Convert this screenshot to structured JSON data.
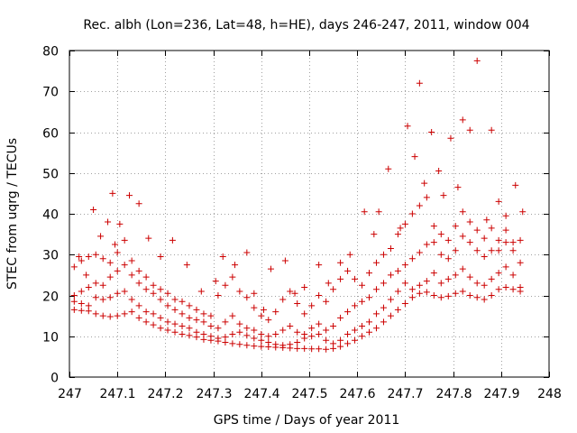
{
  "chart_data": {
    "type": "scatter",
    "title": "Rec. albh (Lon=236, Lat=48, h=HE), days 246-247, 2011, window 004",
    "xlabel": "GPS time / Days of year 2011",
    "ylabel": "STEC from uqrg / TECUs",
    "xlim": [
      247,
      248
    ],
    "ylim": [
      0,
      80
    ],
    "xticks": [
      247,
      247.1,
      247.2,
      247.3,
      247.4,
      247.5,
      247.6,
      247.7,
      247.8,
      247.9,
      248
    ],
    "xtick_labels": [
      "247",
      "247.1",
      "247.2",
      "247.3",
      "247.4",
      "247.5",
      "247.6",
      "247.7",
      "247.8",
      "247.9",
      "248"
    ],
    "yticks": [
      0,
      10,
      20,
      30,
      40,
      50,
      60,
      70,
      80
    ],
    "ytick_labels": [
      "0",
      "10",
      "20",
      "30",
      "40",
      "50",
      "60",
      "70",
      "80"
    ],
    "grid": true,
    "marker": "+",
    "color": "#cc0000",
    "series": [
      {
        "name": "STEC",
        "points": [
          [
            247.01,
            16.5
          ],
          [
            247.025,
            16.3
          ],
          [
            247.04,
            16.2
          ],
          [
            247.055,
            15.5
          ],
          [
            247.07,
            15.0
          ],
          [
            247.085,
            14.8
          ],
          [
            247.1,
            15.0
          ],
          [
            247.115,
            15.5
          ],
          [
            247.13,
            16.0
          ],
          [
            247.145,
            14.5
          ],
          [
            247.16,
            13.5
          ],
          [
            247.175,
            12.8
          ],
          [
            247.19,
            12.0
          ],
          [
            247.205,
            11.5
          ],
          [
            247.22,
            11.0
          ],
          [
            247.235,
            10.5
          ],
          [
            247.25,
            10.2
          ],
          [
            247.265,
            9.8
          ],
          [
            247.28,
            9.2
          ],
          [
            247.295,
            9.0
          ],
          [
            247.31,
            8.8
          ],
          [
            247.325,
            8.5
          ],
          [
            247.34,
            8.2
          ],
          [
            247.355,
            8.0
          ],
          [
            247.37,
            7.8
          ],
          [
            247.385,
            7.6
          ],
          [
            247.4,
            7.5
          ],
          [
            247.415,
            7.4
          ],
          [
            247.43,
            7.3
          ],
          [
            247.445,
            7.2
          ],
          [
            247.46,
            7.1
          ],
          [
            247.475,
            7.0
          ],
          [
            247.49,
            7.0
          ],
          [
            247.505,
            6.9
          ],
          [
            247.52,
            6.9
          ],
          [
            247.535,
            6.8
          ],
          [
            247.55,
            7.0
          ],
          [
            247.565,
            7.5
          ],
          [
            247.58,
            8.2
          ],
          [
            247.595,
            9.0
          ],
          [
            247.61,
            10.0
          ],
          [
            247.625,
            11.0
          ],
          [
            247.64,
            12.0
          ],
          [
            247.655,
            13.5
          ],
          [
            247.67,
            15.0
          ],
          [
            247.685,
            16.5
          ],
          [
            247.7,
            18.0
          ],
          [
            247.715,
            19.5
          ],
          [
            247.73,
            20.5
          ],
          [
            247.745,
            20.8
          ],
          [
            247.76,
            20.0
          ],
          [
            247.775,
            19.5
          ],
          [
            247.79,
            19.8
          ],
          [
            247.805,
            20.5
          ],
          [
            247.82,
            21.0
          ],
          [
            247.835,
            20.0
          ],
          [
            247.85,
            19.5
          ],
          [
            247.865,
            19.0
          ],
          [
            247.88,
            20.0
          ],
          [
            247.895,
            21.5
          ],
          [
            247.91,
            22.0
          ],
          [
            247.925,
            21.5
          ],
          [
            247.94,
            21.0
          ],
          [
            247.01,
            18.5
          ],
          [
            247.025,
            18.0
          ],
          [
            247.04,
            17.5
          ],
          [
            247.055,
            19.5
          ],
          [
            247.07,
            19.0
          ],
          [
            247.085,
            19.5
          ],
          [
            247.1,
            20.5
          ],
          [
            247.115,
            21.0
          ],
          [
            247.13,
            19.0
          ],
          [
            247.145,
            17.5
          ],
          [
            247.16,
            16.0
          ],
          [
            247.175,
            15.5
          ],
          [
            247.19,
            14.5
          ],
          [
            247.205,
            13.5
          ],
          [
            247.22,
            13.0
          ],
          [
            247.235,
            12.5
          ],
          [
            247.25,
            12.0
          ],
          [
            247.265,
            11.0
          ],
          [
            247.28,
            10.5
          ],
          [
            247.295,
            10.0
          ],
          [
            247.31,
            9.5
          ],
          [
            247.325,
            9.8
          ],
          [
            247.34,
            10.5
          ],
          [
            247.355,
            11.0
          ],
          [
            247.37,
            10.2
          ],
          [
            247.385,
            9.5
          ],
          [
            247.4,
            9.0
          ],
          [
            247.415,
            8.5
          ],
          [
            247.43,
            8.0
          ],
          [
            247.445,
            7.8
          ],
          [
            247.46,
            8.0
          ],
          [
            247.475,
            8.5
          ],
          [
            247.49,
            9.5
          ],
          [
            247.505,
            10.0
          ],
          [
            247.52,
            10.5
          ],
          [
            247.535,
            9.0
          ],
          [
            247.55,
            8.2
          ],
          [
            247.565,
            9.0
          ],
          [
            247.58,
            10.5
          ],
          [
            247.595,
            11.5
          ],
          [
            247.61,
            12.5
          ],
          [
            247.625,
            13.5
          ],
          [
            247.64,
            15.5
          ],
          [
            247.655,
            17.0
          ],
          [
            247.67,
            19.0
          ],
          [
            247.685,
            21.0
          ],
          [
            247.7,
            23.0
          ],
          [
            247.715,
            21.5
          ],
          [
            247.73,
            22.5
          ],
          [
            247.745,
            23.5
          ],
          [
            247.76,
            25.5
          ],
          [
            247.775,
            23.0
          ],
          [
            247.79,
            24.0
          ],
          [
            247.805,
            25.0
          ],
          [
            247.82,
            26.5
          ],
          [
            247.835,
            24.5
          ],
          [
            247.85,
            23.0
          ],
          [
            247.865,
            22.5
          ],
          [
            247.88,
            24.0
          ],
          [
            247.895,
            25.5
          ],
          [
            247.91,
            27.0
          ],
          [
            247.925,
            25.0
          ],
          [
            247.94,
            22.0
          ],
          [
            247.01,
            20.0
          ],
          [
            247.025,
            21.0
          ],
          [
            247.04,
            22.0
          ],
          [
            247.055,
            23.0
          ],
          [
            247.07,
            22.5
          ],
          [
            247.085,
            24.5
          ],
          [
            247.1,
            26.0
          ],
          [
            247.115,
            27.5
          ],
          [
            247.13,
            25.0
          ],
          [
            247.145,
            23.0
          ],
          [
            247.16,
            21.5
          ],
          [
            247.175,
            20.5
          ],
          [
            247.19,
            19.0
          ],
          [
            247.205,
            17.5
          ],
          [
            247.22,
            16.5
          ],
          [
            247.235,
            15.5
          ],
          [
            247.25,
            14.5
          ],
          [
            247.265,
            14.0
          ],
          [
            247.28,
            13.5
          ],
          [
            247.295,
            12.5
          ],
          [
            247.31,
            12.0
          ],
          [
            247.325,
            13.5
          ],
          [
            247.34,
            15.0
          ],
          [
            247.355,
            13.0
          ],
          [
            247.37,
            12.0
          ],
          [
            247.385,
            11.5
          ],
          [
            247.4,
            10.5
          ],
          [
            247.415,
            10.0
          ],
          [
            247.43,
            10.5
          ],
          [
            247.445,
            11.5
          ],
          [
            247.46,
            12.5
          ],
          [
            247.475,
            11.0
          ],
          [
            247.49,
            10.5
          ],
          [
            247.505,
            12.0
          ],
          [
            247.52,
            13.0
          ],
          [
            247.535,
            11.5
          ],
          [
            247.55,
            12.5
          ],
          [
            247.565,
            14.5
          ],
          [
            247.58,
            16.0
          ],
          [
            247.595,
            17.5
          ],
          [
            247.61,
            18.5
          ],
          [
            247.625,
            19.5
          ],
          [
            247.64,
            21.5
          ],
          [
            247.655,
            23.0
          ],
          [
            247.67,
            25.0
          ],
          [
            247.685,
            26.0
          ],
          [
            247.7,
            27.5
          ],
          [
            247.715,
            29.0
          ],
          [
            247.73,
            30.5
          ],
          [
            247.745,
            32.5
          ],
          [
            247.76,
            33.0
          ],
          [
            247.775,
            30.0
          ],
          [
            247.79,
            29.0
          ],
          [
            247.805,
            31.0
          ],
          [
            247.82,
            34.5
          ],
          [
            247.835,
            33.0
          ],
          [
            247.85,
            31.0
          ],
          [
            247.865,
            29.5
          ],
          [
            247.88,
            31.0
          ],
          [
            247.895,
            33.5
          ],
          [
            247.91,
            36.0
          ],
          [
            247.925,
            33.0
          ],
          [
            247.94,
            28.0
          ],
          [
            247.01,
            27.0
          ],
          [
            247.025,
            28.5
          ],
          [
            247.04,
            29.5
          ],
          [
            247.055,
            30.0
          ],
          [
            247.07,
            29.0
          ],
          [
            247.085,
            28.0
          ],
          [
            247.1,
            30.5
          ],
          [
            247.115,
            33.5
          ],
          [
            247.13,
            28.5
          ],
          [
            247.145,
            26.0
          ],
          [
            247.16,
            24.5
          ],
          [
            247.175,
            22.5
          ],
          [
            247.19,
            21.5
          ],
          [
            247.205,
            20.5
          ],
          [
            247.22,
            19.0
          ],
          [
            247.235,
            18.5
          ],
          [
            247.25,
            17.5
          ],
          [
            247.265,
            16.5
          ],
          [
            247.28,
            15.5
          ],
          [
            247.295,
            15.0
          ],
          [
            247.31,
            20.0
          ],
          [
            247.325,
            22.5
          ],
          [
            247.34,
            24.5
          ],
          [
            247.355,
            21.0
          ],
          [
            247.37,
            19.5
          ],
          [
            247.385,
            17.0
          ],
          [
            247.4,
            15.0
          ],
          [
            247.415,
            14.0
          ],
          [
            247.43,
            16.0
          ],
          [
            247.445,
            19.0
          ],
          [
            247.46,
            21.0
          ],
          [
            247.475,
            18.0
          ],
          [
            247.49,
            15.5
          ],
          [
            247.505,
            17.5
          ],
          [
            247.52,
            20.0
          ],
          [
            247.535,
            18.5
          ],
          [
            247.55,
            21.5
          ],
          [
            247.565,
            24.0
          ],
          [
            247.58,
            26.0
          ],
          [
            247.595,
            24.0
          ],
          [
            247.61,
            22.5
          ],
          [
            247.625,
            25.5
          ],
          [
            247.64,
            28.0
          ],
          [
            247.655,
            30.0
          ],
          [
            247.67,
            31.5
          ],
          [
            247.685,
            35.0
          ],
          [
            247.7,
            37.5
          ],
          [
            247.715,
            40.0
          ],
          [
            247.73,
            42.0
          ],
          [
            247.745,
            44.0
          ],
          [
            247.76,
            37.0
          ],
          [
            247.775,
            35.0
          ],
          [
            247.79,
            33.5
          ],
          [
            247.805,
            37.0
          ],
          [
            247.82,
            40.5
          ],
          [
            247.835,
            38.0
          ],
          [
            247.85,
            36.0
          ],
          [
            247.865,
            34.0
          ],
          [
            247.88,
            36.5
          ],
          [
            247.895,
            31.0
          ],
          [
            247.91,
            33.0
          ],
          [
            247.925,
            31.0
          ],
          [
            247.94,
            33.5
          ],
          [
            247.02,
            29.5
          ],
          [
            247.035,
            25.0
          ],
          [
            247.05,
            41.0
          ],
          [
            247.065,
            34.5
          ],
          [
            247.08,
            38.0
          ],
          [
            247.09,
            45.0
          ],
          [
            247.095,
            32.5
          ],
          [
            247.105,
            37.5
          ],
          [
            247.125,
            44.5
          ],
          [
            247.145,
            42.5
          ],
          [
            247.165,
            34.0
          ],
          [
            247.19,
            29.5
          ],
          [
            247.215,
            33.5
          ],
          [
            247.245,
            27.5
          ],
          [
            247.275,
            21.0
          ],
          [
            247.305,
            23.5
          ],
          [
            247.32,
            29.5
          ],
          [
            247.345,
            27.5
          ],
          [
            247.37,
            30.5
          ],
          [
            247.385,
            20.5
          ],
          [
            247.405,
            16.5
          ],
          [
            247.42,
            26.5
          ],
          [
            247.45,
            28.5
          ],
          [
            247.47,
            20.5
          ],
          [
            247.49,
            22.0
          ],
          [
            247.52,
            27.5
          ],
          [
            247.54,
            23.0
          ],
          [
            247.565,
            28.0
          ],
          [
            247.585,
            30.0
          ],
          [
            247.615,
            40.5
          ],
          [
            247.635,
            35.0
          ],
          [
            247.645,
            40.5
          ],
          [
            247.665,
            51.0
          ],
          [
            247.69,
            36.5
          ],
          [
            247.705,
            61.5
          ],
          [
            247.72,
            54.0
          ],
          [
            247.73,
            72.0
          ],
          [
            247.74,
            47.5
          ],
          [
            247.755,
            60.0
          ],
          [
            247.77,
            50.5
          ],
          [
            247.78,
            44.5
          ],
          [
            247.795,
            58.5
          ],
          [
            247.81,
            46.5
          ],
          [
            247.82,
            63.0
          ],
          [
            247.835,
            60.5
          ],
          [
            247.85,
            77.5
          ],
          [
            247.87,
            38.5
          ],
          [
            247.88,
            60.5
          ],
          [
            247.895,
            43.0
          ],
          [
            247.91,
            39.5
          ],
          [
            247.93,
            47.0
          ],
          [
            247.945,
            40.5
          ]
        ]
      }
    ]
  }
}
